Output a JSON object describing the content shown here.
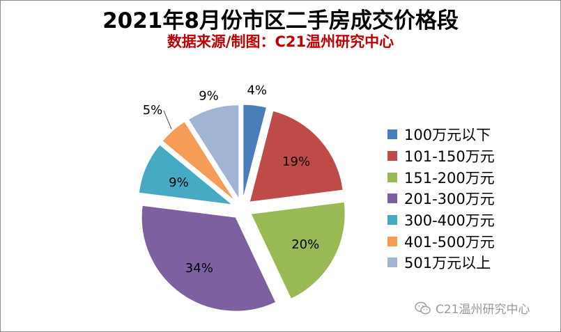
{
  "chart_data": {
    "type": "pie",
    "title": "2021年8月份市区二手房成交价格段",
    "subtitle": "数据来源/制图：C21温州研究中心",
    "subtitle_color": "#c00000",
    "legend_position": "right",
    "exploded": true,
    "slices": [
      {
        "label": "100万元以下",
        "value": 4,
        "data_label": "4%",
        "color": "#4a7ebb"
      },
      {
        "label": "101-150万元",
        "value": 19,
        "data_label": "19%",
        "color": "#be4b48"
      },
      {
        "label": "151-200万元",
        "value": 20,
        "data_label": "20%",
        "color": "#98b954"
      },
      {
        "label": "201-300万元",
        "value": 34,
        "data_label": "34%",
        "color": "#7d60a0"
      },
      {
        "label": "300-400万元",
        "value": 9,
        "data_label": "9%",
        "color": "#46aac5"
      },
      {
        "label": "401-500万元",
        "value": 5,
        "data_label": "5%",
        "color": "#f59d56"
      },
      {
        "label": "501万元以上",
        "value": 9,
        "data_label": "9%",
        "color": "#a1b4d4"
      }
    ]
  },
  "watermark": {
    "text": "C21温州研究中心",
    "icon": "wechat-icon"
  }
}
